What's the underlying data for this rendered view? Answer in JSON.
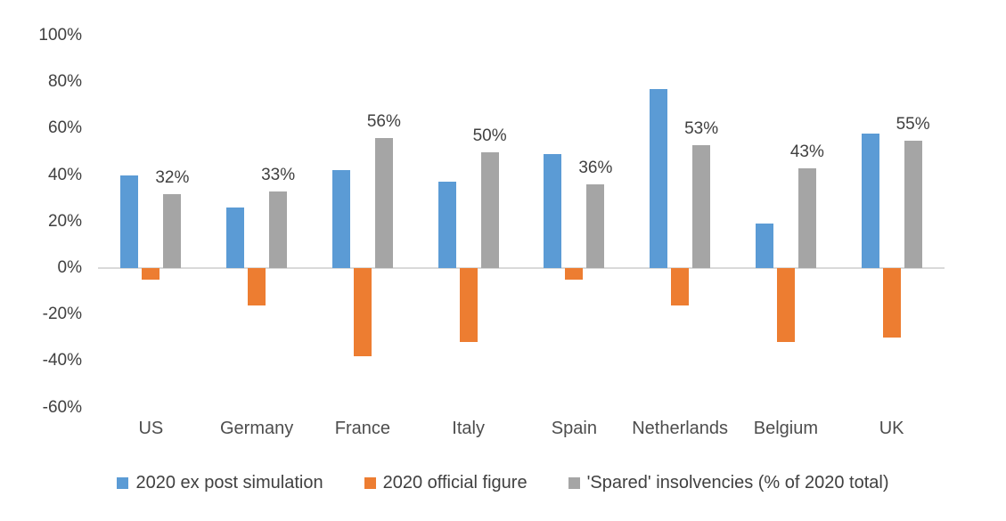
{
  "chart_data": {
    "type": "bar",
    "categories": [
      "US",
      "Germany",
      "France",
      "Italy",
      "Spain",
      "Netherlands",
      "Belgium",
      "UK"
    ],
    "series": [
      {
        "name": "2020 ex post simulation",
        "color": "#5b9bd5",
        "values": [
          40,
          26,
          42,
          37,
          49,
          77,
          19,
          58
        ]
      },
      {
        "name": "2020 official figure",
        "color": "#ed7d31",
        "values": [
          -5,
          -16,
          -38,
          -32,
          -5,
          -16,
          -32,
          -30
        ]
      },
      {
        "name": "'Spared' insolvencies (% of 2020 total)",
        "color": "#a5a5a5",
        "values": [
          32,
          33,
          56,
          50,
          36,
          53,
          43,
          55
        ],
        "data_labels": [
          "32%",
          "33%",
          "56%",
          "50%",
          "36%",
          "53%",
          "43%",
          "55%"
        ]
      }
    ],
    "title": "",
    "xlabel": "",
    "ylabel": "",
    "ylim": [
      -60,
      100
    ],
    "ytick_step": 20,
    "ytick_labels": [
      "100%",
      "80%",
      "60%",
      "40%",
      "20%",
      "0%",
      "-20%",
      "-40%",
      "-60%"
    ],
    "grid": false,
    "legend_position": "bottom",
    "background_color": "#ffffff",
    "axis_line_color": "#d9d9d9",
    "text_color": "#404040"
  }
}
